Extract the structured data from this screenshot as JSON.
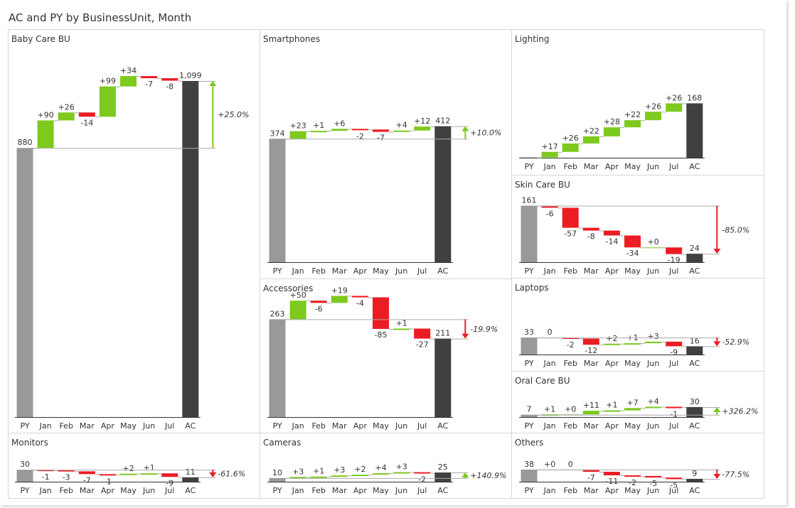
{
  "visual": {
    "title": "AC and PY by BusinessUnit, Month",
    "colors": {
      "positive": "#7dc91e",
      "negative": "#ec1c24",
      "py_bar": "#999999",
      "ac_bar": "#404040",
      "panel_border": "#d7d7d7",
      "text": "#333333",
      "connector": "#aaaaaa"
    }
  },
  "chart_data": [
    {
      "type": "bar",
      "subtype": "waterfall",
      "title": "Baby Care BU",
      "categories": [
        "PY",
        "Jan",
        "Feb",
        "Mar",
        "Apr",
        "May",
        "Jun",
        "Jul",
        "AC"
      ],
      "py": 880,
      "deltas": [
        90,
        26,
        -14,
        99,
        34,
        -7,
        -8
      ],
      "ac": 1099,
      "value_labels": [
        "880",
        "+90",
        "+26",
        "-14",
        "+99",
        "+34",
        "-7",
        "-8",
        "1,099"
      ],
      "variance_label": "+25.0%",
      "variance_direction": "up"
    },
    {
      "type": "bar",
      "subtype": "waterfall",
      "title": "Smartphones",
      "categories": [
        "PY",
        "Jan",
        "Feb",
        "Mar",
        "Apr",
        "May",
        "Jun",
        "Jul",
        "AC"
      ],
      "py": 374,
      "deltas": [
        23,
        1,
        6,
        -2,
        -7,
        4,
        12
      ],
      "ac": 412,
      "value_labels": [
        "374",
        "+23",
        "+1",
        "+6",
        "-2",
        "-7",
        "+4",
        "+12",
        "412"
      ],
      "variance_label": "+10.0%",
      "variance_direction": "up"
    },
    {
      "type": "bar",
      "subtype": "waterfall",
      "title": "Lighting",
      "categories": [
        "PY",
        "Jan",
        "Feb",
        "Mar",
        "Apr",
        "May",
        "Jun",
        "Jul",
        "AC"
      ],
      "py": 1,
      "deltas": [
        17,
        26,
        22,
        28,
        22,
        26,
        26
      ],
      "ac": 168,
      "value_labels": [
        "",
        "+17",
        "+26",
        "+22",
        "+28",
        "+22",
        "+26",
        "+26",
        "168"
      ],
      "variance_label": "",
      "variance_direction": "none"
    },
    {
      "type": "bar",
      "subtype": "waterfall",
      "title": "Skin Care BU",
      "categories": [
        "PY",
        "Jan",
        "Feb",
        "Mar",
        "Apr",
        "May",
        "Jun",
        "Jul",
        "AC"
      ],
      "py": 161,
      "deltas": [
        -6,
        -57,
        -8,
        -14,
        -34,
        0,
        -19
      ],
      "ac": 24,
      "value_labels": [
        "161",
        "-6",
        "-57",
        "-8",
        "-14",
        "-34",
        "+0",
        "-19",
        "24"
      ],
      "variance_label": "-85.0%",
      "variance_direction": "down"
    },
    {
      "type": "bar",
      "subtype": "waterfall",
      "title": "Accessories",
      "categories": [
        "PY",
        "Jan",
        "Feb",
        "Mar",
        "Apr",
        "May",
        "Jun",
        "Jul",
        "AC"
      ],
      "py": 263,
      "deltas": [
        50,
        -6,
        19,
        -4,
        -85,
        1,
        -27
      ],
      "ac": 211,
      "value_labels": [
        "263",
        "+50",
        "-6",
        "+19",
        "-4",
        "-85",
        "+1",
        "-27",
        "211"
      ],
      "variance_label": "-19.9%",
      "variance_direction": "down"
    },
    {
      "type": "bar",
      "subtype": "waterfall",
      "title": "Laptops",
      "categories": [
        "PY",
        "Jan",
        "Feb",
        "Mar",
        "Apr",
        "May",
        "Jun",
        "Jul",
        "AC"
      ],
      "py": 33,
      "deltas": [
        0,
        -2,
        -12,
        2,
        1,
        3,
        -9
      ],
      "ac": 16,
      "value_labels": [
        "33",
        "0",
        "-2",
        "-12",
        "+2",
        "+1",
        "+3",
        "-9",
        "16"
      ],
      "variance_label": "-52.9%",
      "variance_direction": "down"
    },
    {
      "type": "bar",
      "subtype": "waterfall",
      "title": "Oral Care BU",
      "categories": [
        "PY",
        "Jan",
        "Feb",
        "Mar",
        "Apr",
        "May",
        "Jun",
        "Jul",
        "AC"
      ],
      "py": 7,
      "deltas": [
        1,
        0,
        11,
        1,
        7,
        4,
        -1
      ],
      "ac": 30,
      "value_labels": [
        "7",
        "+1",
        "+0",
        "+11",
        "+1",
        "+7",
        "+4",
        "-1",
        "30"
      ],
      "variance_label": "+326.2%",
      "variance_direction": "up"
    },
    {
      "type": "bar",
      "subtype": "waterfall",
      "title": "Monitors",
      "categories": [
        "PY",
        "Jan",
        "Feb",
        "Mar",
        "Apr",
        "May",
        "Jun",
        "Jul",
        "AC"
      ],
      "py": 30,
      "deltas": [
        -1,
        -3,
        -7,
        -1,
        2,
        1,
        -9
      ],
      "ac": 11,
      "value_labels": [
        "30",
        "-1",
        "-3",
        "-7",
        "-1",
        "+2",
        "+1",
        "-9",
        "11"
      ],
      "variance_label": "-61.6%",
      "variance_direction": "down"
    },
    {
      "type": "bar",
      "subtype": "waterfall",
      "title": "Cameras",
      "categories": [
        "PY",
        "Jan",
        "Feb",
        "Mar",
        "Apr",
        "May",
        "Jun",
        "Jul",
        "AC"
      ],
      "py": 10,
      "deltas": [
        3,
        1,
        3,
        2,
        4,
        3,
        -2
      ],
      "ac": 25,
      "value_labels": [
        "10",
        "+3",
        "+1",
        "+3",
        "+2",
        "+4",
        "+3",
        "-2",
        "25"
      ],
      "variance_label": "+140.9%",
      "variance_direction": "up"
    },
    {
      "type": "bar",
      "subtype": "waterfall",
      "title": "Others",
      "categories": [
        "PY",
        "Jan",
        "Feb",
        "Mar",
        "Apr",
        "May",
        "Jun",
        "Jul",
        "AC"
      ],
      "py": 38,
      "deltas": [
        0,
        0,
        -7,
        -11,
        -2,
        -5,
        -5
      ],
      "ac": 9,
      "value_labels": [
        "38",
        "+0",
        "0",
        "-7",
        "-11",
        "-2",
        "-5",
        "-5",
        "9"
      ],
      "variance_label": "-77.5%",
      "variance_direction": "down"
    }
  ]
}
